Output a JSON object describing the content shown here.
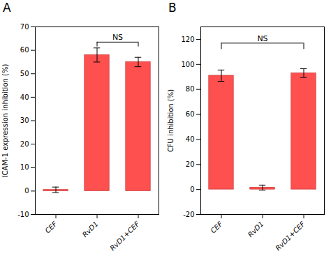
{
  "chart_data": [
    {
      "type": "bar",
      "title": "A",
      "categories": [
        "CEF",
        "RvD1",
        "RvD1+CEF"
      ],
      "values": [
        0.5,
        58.0,
        55.0
      ],
      "errors": [
        1.2,
        3.0,
        2.0
      ],
      "ylabel": "ICAM-1 expression inhibition (%)",
      "ylim": [
        -10,
        70
      ],
      "yticks": [
        -10,
        0,
        10,
        20,
        30,
        40,
        50,
        60,
        70
      ],
      "color": "#FF5050",
      "grid": false,
      "annotations": [
        {
          "text": "NS",
          "from": "RvD1",
          "to": "RvD1+CEF",
          "y": 63.5,
          "drop": 2.0
        }
      ]
    },
    {
      "type": "bar",
      "title": "B",
      "categories": [
        "CEF",
        "RvD1",
        "RvD1+CEF"
      ],
      "values": [
        91.0,
        1.5,
        93.0
      ],
      "errors": [
        4.5,
        2.0,
        3.5
      ],
      "ylabel": "CFU inhibition (%)",
      "ylim": [
        -20,
        130
      ],
      "yticks": [
        -20,
        0,
        20,
        40,
        60,
        80,
        100,
        120
      ],
      "color": "#FF5050",
      "grid": false,
      "annotations": [
        {
          "text": "NS",
          "from": "CEF",
          "to": "RvD1+CEF",
          "y": 117,
          "drop": 5.0
        }
      ]
    }
  ]
}
